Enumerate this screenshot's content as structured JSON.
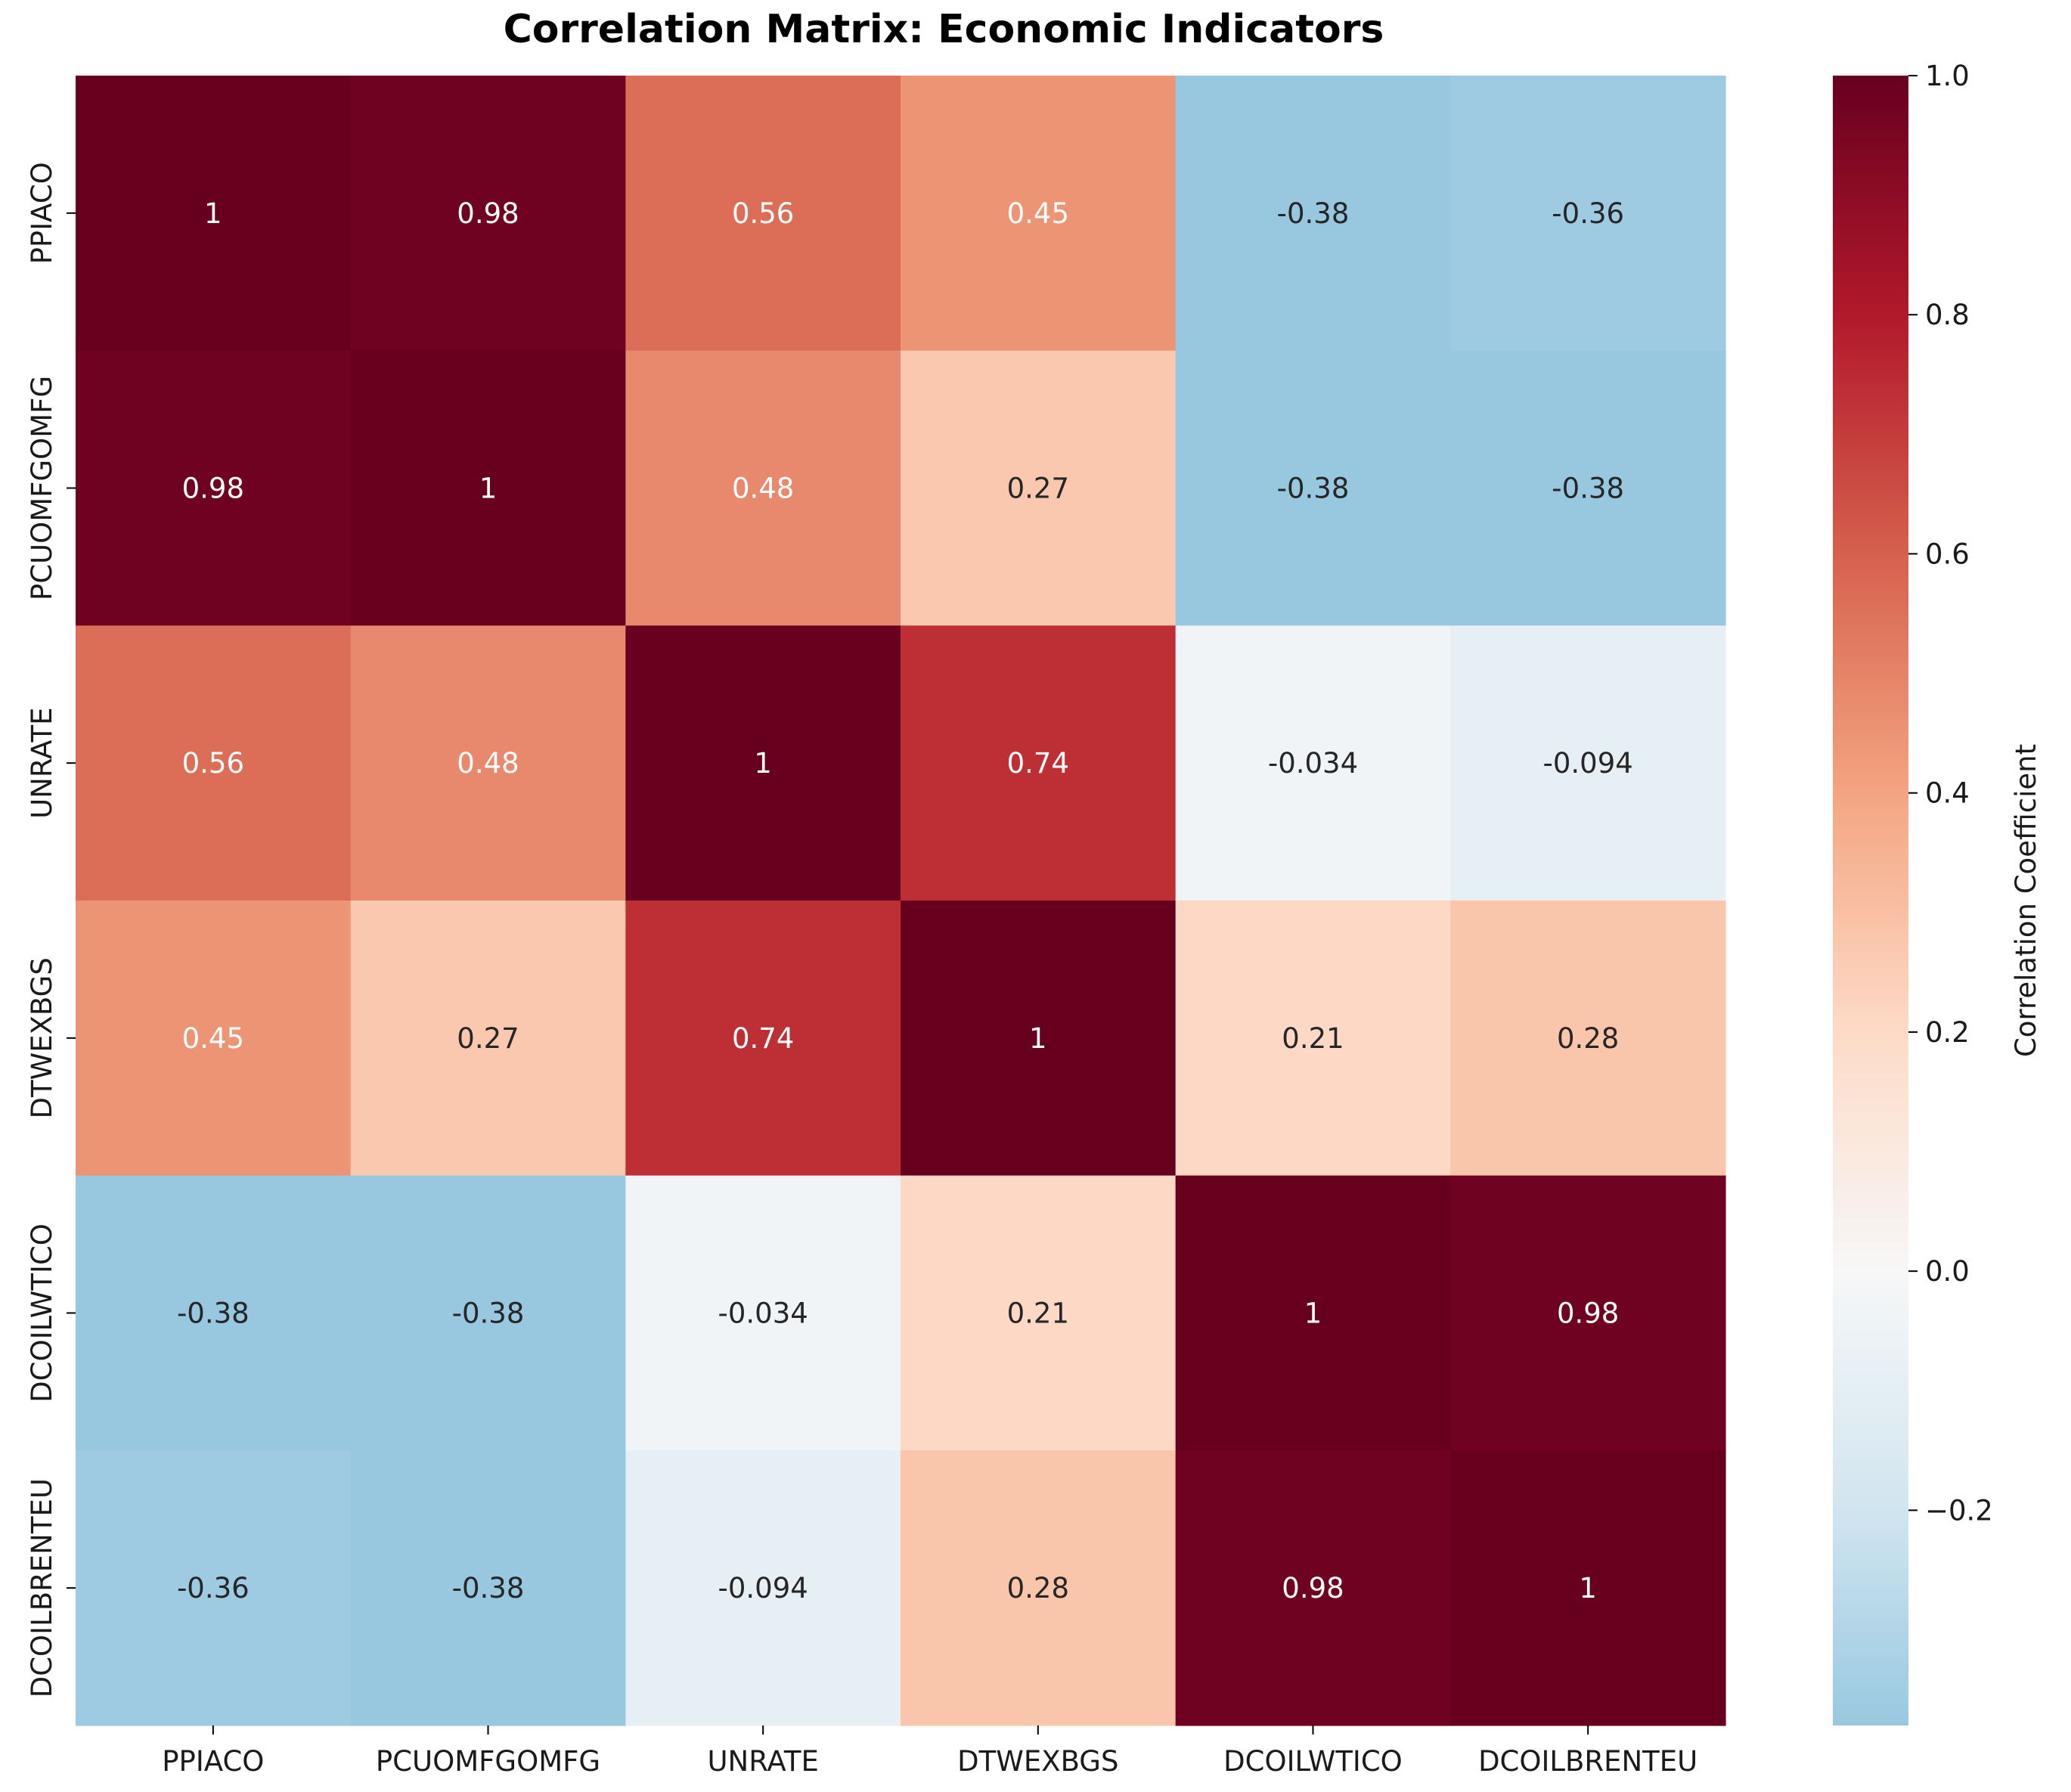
{
  "chart_data": {
    "type": "heatmap",
    "title": "Correlation Matrix: Economic Indicators",
    "row_labels": [
      "PPIACO",
      "PCUOMFGOMFG",
      "UNRATE",
      "DTWEXBGS",
      "DCOILWTICO",
      "DCOILBRENTEU"
    ],
    "col_labels": [
      "PPIACO",
      "PCUOMFGOMFG",
      "UNRATE",
      "DTWEXBGS",
      "DCOILWTICO",
      "DCOILBRENTEU"
    ],
    "values": [
      [
        1,
        0.98,
        0.56,
        0.45,
        -0.38,
        -0.36
      ],
      [
        0.98,
        1,
        0.48,
        0.27,
        -0.38,
        -0.38
      ],
      [
        0.56,
        0.48,
        1,
        0.74,
        -0.034,
        -0.094
      ],
      [
        0.45,
        0.27,
        0.74,
        1,
        0.21,
        0.28
      ],
      [
        -0.38,
        -0.38,
        -0.034,
        0.21,
        1,
        0.98
      ],
      [
        -0.36,
        -0.38,
        -0.094,
        0.28,
        0.98,
        1
      ]
    ],
    "annotations": [
      [
        "1",
        "0.98",
        "0.56",
        "0.45",
        "-0.38",
        "-0.36"
      ],
      [
        "0.98",
        "1",
        "0.48",
        "0.27",
        "-0.38",
        "-0.38"
      ],
      [
        "0.56",
        "0.48",
        "1",
        "0.74",
        "-0.034",
        "-0.094"
      ],
      [
        "0.45",
        "0.27",
        "0.74",
        "1",
        "0.21",
        "0.28"
      ],
      [
        "-0.38",
        "-0.38",
        "-0.034",
        "0.21",
        "1",
        "0.98"
      ],
      [
        "-0.36",
        "-0.38",
        "-0.094",
        "0.28",
        "0.98",
        "1"
      ]
    ],
    "colormap": "RdBu_r",
    "color_range": [
      -0.38,
      1.0
    ],
    "center": 0,
    "colorbar": {
      "label": "Correlation Coefficient",
      "ticks": [
        "1.0",
        "0.8",
        "0.6",
        "0.4",
        "0.2",
        "0.0",
        "−0.2"
      ],
      "tick_values": [
        1.0,
        0.8,
        0.6,
        0.4,
        0.2,
        0.0,
        -0.2
      ]
    }
  }
}
